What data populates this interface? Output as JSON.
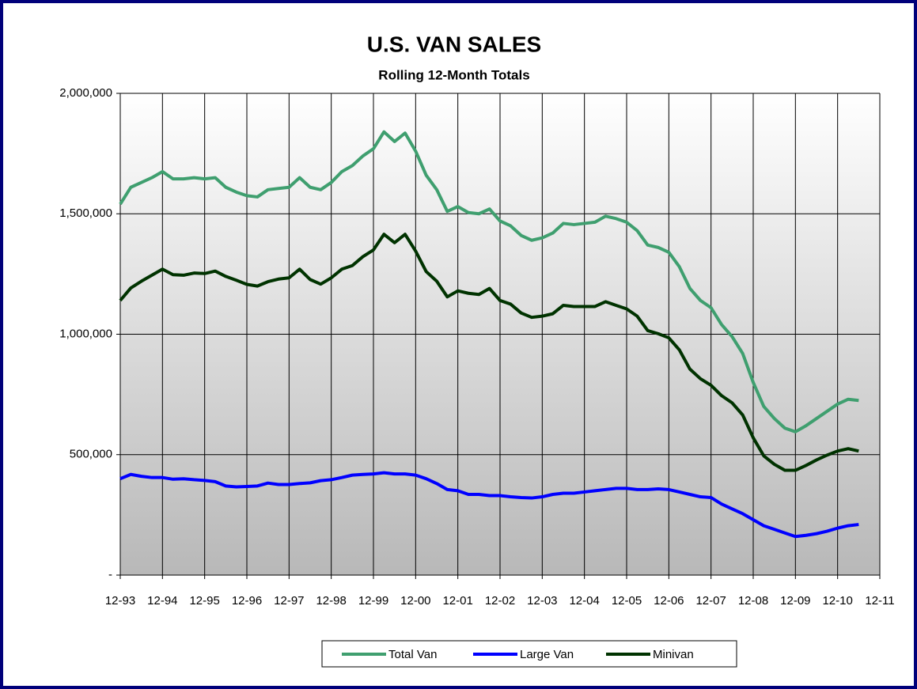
{
  "chart_data": {
    "type": "line",
    "title": "U.S. VAN SALES",
    "subtitle": "Rolling 12-Month Totals",
    "categories": [
      "12-93",
      null,
      null,
      null,
      "12-94",
      null,
      null,
      null,
      "12-95",
      null,
      null,
      null,
      "12-96",
      null,
      null,
      null,
      "12-97",
      null,
      null,
      null,
      "12-98",
      null,
      null,
      null,
      "12-99",
      null,
      null,
      null,
      "12-00",
      null,
      null,
      null,
      "12-01",
      null,
      null,
      null,
      "12-02",
      null,
      null,
      null,
      "12-03",
      null,
      null,
      null,
      "12-04",
      null,
      null,
      null,
      "12-05",
      null,
      null,
      null,
      "12-06",
      null,
      null,
      null,
      "12-07",
      null,
      null,
      null,
      "12-08",
      null,
      null,
      null,
      "12-09",
      null,
      null,
      null,
      "12-10",
      null,
      null,
      null,
      "12-11"
    ],
    "series": [
      {
        "name": "Total Van",
        "color": "#3f9f6f",
        "values": [
          1540000,
          1610000,
          1630000,
          1650000,
          1675000,
          1645000,
          1645000,
          1650000,
          1645000,
          1650000,
          1610000,
          1590000,
          1575000,
          1570000,
          1600000,
          1605000,
          1610000,
          1650000,
          1610000,
          1600000,
          1630000,
          1675000,
          1700000,
          1740000,
          1770000,
          1840000,
          1800000,
          1835000,
          1760000,
          1660000,
          1600000,
          1510000,
          1530000,
          1505000,
          1500000,
          1520000,
          1470000,
          1450000,
          1410000,
          1390000,
          1400000,
          1420000,
          1460000,
          1455000,
          1460000,
          1465000,
          1490000,
          1480000,
          1465000,
          1430000,
          1370000,
          1360000,
          1340000,
          1280000,
          1190000,
          1140000,
          1110000,
          1040000,
          990000,
          920000,
          800000,
          700000,
          650000,
          610000,
          595000,
          620000,
          650000,
          680000,
          710000,
          730000,
          725000,
          null,
          null
        ]
      },
      {
        "name": "Large Van",
        "color": "#0000ff",
        "values": [
          400000,
          418000,
          410000,
          405000,
          405000,
          398000,
          400000,
          396000,
          393000,
          388000,
          370000,
          366000,
          368000,
          370000,
          382000,
          376000,
          376000,
          380000,
          383000,
          392000,
          396000,
          405000,
          415000,
          418000,
          420000,
          425000,
          420000,
          420000,
          415000,
          400000,
          380000,
          355000,
          350000,
          335000,
          335000,
          330000,
          330000,
          325000,
          322000,
          320000,
          325000,
          335000,
          340000,
          340000,
          345000,
          350000,
          355000,
          360000,
          360000,
          355000,
          355000,
          358000,
          355000,
          345000,
          335000,
          325000,
          322000,
          295000,
          275000,
          255000,
          230000,
          205000,
          190000,
          175000,
          160000,
          165000,
          172000,
          182000,
          195000,
          205000,
          210000,
          null,
          null
        ]
      },
      {
        "name": "Minivan",
        "color": "#003300",
        "values": [
          1140000,
          1192000,
          1220000,
          1245000,
          1270000,
          1247000,
          1245000,
          1254000,
          1252000,
          1262000,
          1240000,
          1224000,
          1207000,
          1200000,
          1218000,
          1229000,
          1234000,
          1270000,
          1227000,
          1208000,
          1234000,
          1270000,
          1285000,
          1322000,
          1350000,
          1415000,
          1380000,
          1415000,
          1345000,
          1260000,
          1220000,
          1155000,
          1180000,
          1170000,
          1165000,
          1190000,
          1140000,
          1125000,
          1088000,
          1070000,
          1075000,
          1085000,
          1120000,
          1115000,
          1115000,
          1115000,
          1135000,
          1120000,
          1105000,
          1075000,
          1015000,
          1002000,
          985000,
          935000,
          855000,
          815000,
          788000,
          745000,
          715000,
          665000,
          570000,
          495000,
          460000,
          435000,
          435000,
          455000,
          478000,
          498000,
          515000,
          525000,
          515000,
          null,
          null
        ]
      }
    ],
    "ylim": [
      0,
      2000000
    ],
    "yticks": [
      {
        "value": 0,
        "label": "-"
      },
      {
        "value": 500000,
        "label": "500,000"
      },
      {
        "value": 1000000,
        "label": "1,000,000"
      },
      {
        "value": 1500000,
        "label": "1,500,000"
      },
      {
        "value": 2000000,
        "label": "2,000,000"
      }
    ],
    "grid": true,
    "legend": "bottom"
  }
}
